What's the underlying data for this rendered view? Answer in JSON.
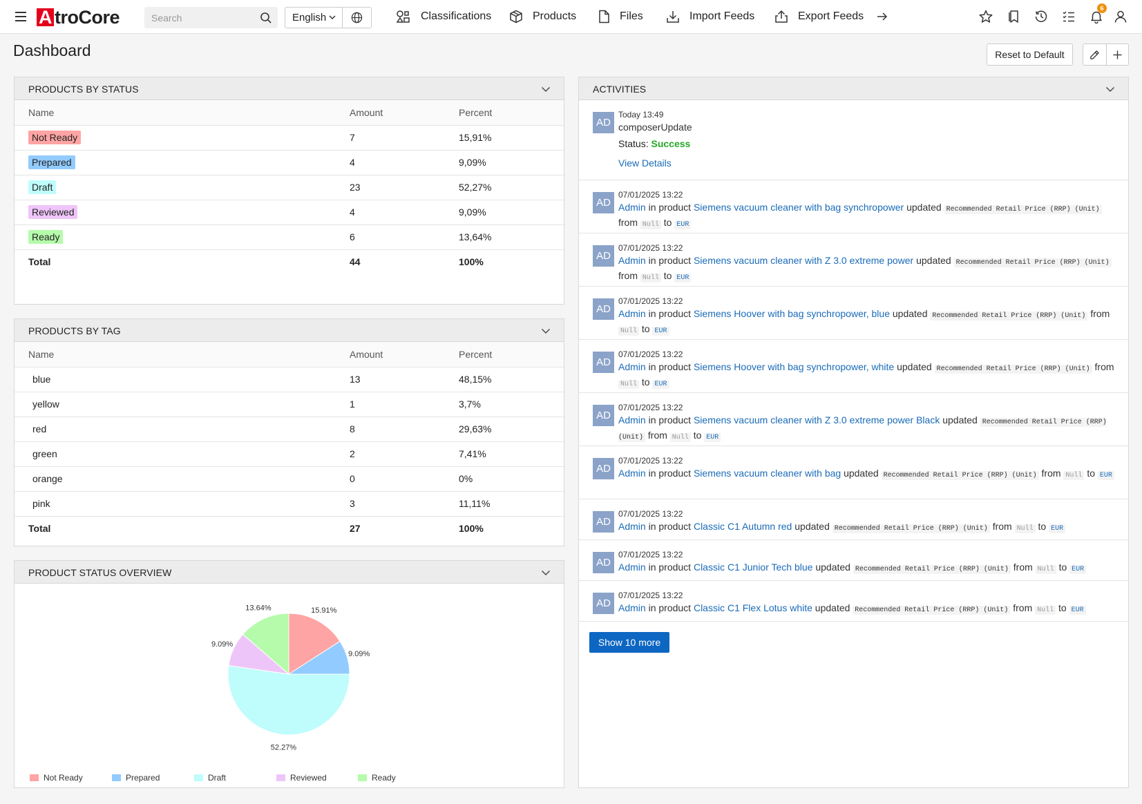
{
  "header": {
    "logo_mark": "A",
    "logo_rest": "troCore",
    "search_placeholder": "Search",
    "language": "English",
    "nav": [
      {
        "label": "Classifications",
        "icon": "classifications-icon"
      },
      {
        "label": "Products",
        "icon": "package-icon"
      },
      {
        "label": "Files",
        "icon": "file-icon"
      },
      {
        "label": "Import Feeds",
        "icon": "import-icon"
      },
      {
        "label": "Export Feeds",
        "icon": "export-icon"
      }
    ],
    "notification_count": "6",
    "accent_color": "#e3001b"
  },
  "page": {
    "title": "Dashboard",
    "reset_label": "Reset to Default"
  },
  "products_by_status": {
    "title": "PRODUCTS BY STATUS",
    "columns": [
      "Name",
      "Amount",
      "Percent"
    ],
    "rows": [
      {
        "name": "Not Ready",
        "amount": "7",
        "percent": "15,91%",
        "color": "#ffa4a4"
      },
      {
        "name": "Prepared",
        "amount": "4",
        "percent": "9,09%",
        "color": "#92cbff"
      },
      {
        "name": "Draft",
        "amount": "23",
        "percent": "52,27%",
        "color": "#bffcfc"
      },
      {
        "name": "Reviewed",
        "amount": "4",
        "percent": "9,09%",
        "color": "#eec5f9"
      },
      {
        "name": "Ready",
        "amount": "6",
        "percent": "13,64%",
        "color": "#b5fbab"
      }
    ],
    "total": {
      "name": "Total",
      "amount": "44",
      "percent": "100%"
    }
  },
  "products_by_tag": {
    "title": "PRODUCTS BY TAG",
    "columns": [
      "Name",
      "Amount",
      "Percent"
    ],
    "rows": [
      {
        "name": "blue",
        "amount": "13",
        "percent": "48,15%"
      },
      {
        "name": "yellow",
        "amount": "1",
        "percent": "3,7%"
      },
      {
        "name": "red",
        "amount": "8",
        "percent": "29,63%"
      },
      {
        "name": "green",
        "amount": "2",
        "percent": "7,41%"
      },
      {
        "name": "orange",
        "amount": "0",
        "percent": "0%"
      },
      {
        "name": "pink",
        "amount": "3",
        "percent": "11,11%"
      }
    ],
    "total": {
      "name": "Total",
      "amount": "27",
      "percent": "100%"
    }
  },
  "status_overview": {
    "title": "PRODUCT STATUS OVERVIEW"
  },
  "chart_data": {
    "type": "pie",
    "categories": [
      "Not Ready",
      "Prepared",
      "Draft",
      "Reviewed",
      "Ready"
    ],
    "values": [
      15.91,
      9.09,
      52.27,
      9.09,
      13.64
    ],
    "labels": [
      "15.91%",
      "9.09%",
      "52.27%",
      "9.09%",
      "13.64%"
    ],
    "colors": [
      "#ffa4a4",
      "#92cbff",
      "#bffcfc",
      "#eec5f9",
      "#b5fbab"
    ],
    "legend_position": "bottom"
  },
  "activities": {
    "title": "ACTIVITIES",
    "first": {
      "avatar": "AD",
      "time": "Today 13:49",
      "action": "composerUpdate",
      "status_label": "Status:",
      "status_value": "Success",
      "details_link": "View Details"
    },
    "items": [
      {
        "avatar": "AD",
        "time": "07/01/2025 13:22",
        "user": "Admin",
        "product": "Siemens vacuum cleaner with bag synchropower"
      },
      {
        "avatar": "AD",
        "time": "07/01/2025 13:22",
        "user": "Admin",
        "product": "Siemens vacuum cleaner with Z 3.0 extreme power"
      },
      {
        "avatar": "AD",
        "time": "07/01/2025 13:22",
        "user": "Admin",
        "product": "Siemens Hoover with bag synchropower, blue"
      },
      {
        "avatar": "AD",
        "time": "07/01/2025 13:22",
        "user": "Admin",
        "product": "Siemens Hoover with bag synchropower, white"
      },
      {
        "avatar": "AD",
        "time": "07/01/2025 13:22",
        "user": "Admin",
        "product": "Siemens vacuum cleaner with Z 3.0 extreme power Black"
      },
      {
        "avatar": "AD",
        "time": "07/01/2025 13:22",
        "user": "Admin",
        "product": "Siemens vacuum cleaner with bag"
      },
      {
        "avatar": "AD",
        "time": "07/01/2025 13:22",
        "user": "Admin",
        "product": "Classic C1 Autumn red"
      },
      {
        "avatar": "AD",
        "time": "07/01/2025 13:22",
        "user": "Admin",
        "product": "Classic C1 Junior Tech blue"
      },
      {
        "avatar": "AD",
        "time": "07/01/2025 13:22",
        "user": "Admin",
        "product": "Classic C1 Flex Lotus white"
      }
    ],
    "text_in_product": "in product",
    "text_updated": "updated",
    "field": "Recommended Retail Price (RRP) (Unit)",
    "text_from": "from",
    "value_from": "Null",
    "text_to": "to",
    "value_to": "EUR",
    "show_more": "Show 10 more"
  }
}
